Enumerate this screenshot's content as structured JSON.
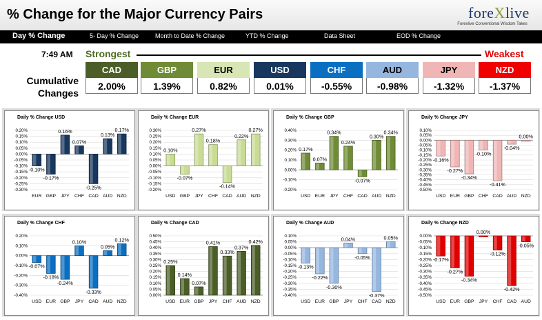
{
  "title": "% Change for the Major Currency Pairs",
  "logo": {
    "brand_a": "fore",
    "brand_x": "X",
    "brand_b": "live",
    "tagline": "Forexlive Conventional Wisdom Takes"
  },
  "nav": [
    "Day % Change",
    "5- Day % Change",
    "Month to Date % Change",
    "YTD % Change",
    "Data Sheet",
    "EOD % Change"
  ],
  "time": "7:49 AM",
  "strongest": "Strongest",
  "weakest": "Weakest",
  "cumulative_label": "Cumulative Changes",
  "currencies": [
    {
      "name": "CAD",
      "value": "2.00%",
      "color": "#4b5e27"
    },
    {
      "name": "GBP",
      "value": "1.39%",
      "color": "#6f8b36"
    },
    {
      "name": "EUR",
      "value": "0.82%",
      "color": "#d8e5b5",
      "text": "#000000"
    },
    {
      "name": "USD",
      "value": "0.01%",
      "color": "#17375e"
    },
    {
      "name": "CHF",
      "value": "-0.55%",
      "color": "#0b6fc1"
    },
    {
      "name": "AUD",
      "value": "-0.98%",
      "color": "#95b6df",
      "text": "#000000"
    },
    {
      "name": "JPY",
      "value": "-1.32%",
      "color": "#f0b6b6",
      "text": "#000000"
    },
    {
      "name": "NZD",
      "value": "-1.37%",
      "color": "#f00000"
    }
  ],
  "chart_data": [
    {
      "type": "bar",
      "title": "Daily % Change USD",
      "categories": [
        "EUR",
        "GBP",
        "JPY",
        "CHF",
        "CAD",
        "AUD",
        "NZD"
      ],
      "values": [
        -0.1,
        -0.17,
        0.16,
        0.07,
        -0.25,
        0.13,
        0.17
      ],
      "labels": [
        "-0.10%",
        "-0.17%",
        "0.16%",
        "0.07%",
        "-0.25%",
        "0.13%",
        "0.17%"
      ],
      "ylim": [
        -0.3,
        0.2
      ],
      "ticks": [
        "0.20%",
        "0.15%",
        "0.10%",
        "0.05%",
        "0.00%",
        "-0.05%",
        "-0.10%",
        "-0.15%",
        "-0.20%",
        "-0.25%",
        "-0.30%"
      ],
      "color": "#17375e"
    },
    {
      "type": "bar",
      "title": "Daily % Change EUR",
      "categories": [
        "USD",
        "GBP",
        "JPY",
        "CHF",
        "CAD",
        "AUD",
        "NZD"
      ],
      "values": [
        0.1,
        -0.07,
        0.27,
        0.18,
        -0.14,
        0.22,
        0.27
      ],
      "labels": [
        "0.10%",
        "-0.07%",
        "0.27%",
        "0.18%",
        "-0.14%",
        "0.22%",
        "0.27%"
      ],
      "ylim": [
        -0.2,
        0.3
      ],
      "ticks": [
        "0.30%",
        "0.25%",
        "0.20%",
        "0.15%",
        "0.10%",
        "0.05%",
        "0.00%",
        "-0.05%",
        "-0.10%",
        "-0.15%",
        "-0.20%"
      ],
      "color": "#c9dc93"
    },
    {
      "type": "bar",
      "title": "Daily % Change GBP",
      "categories": [
        "USD",
        "EUR",
        "JPY",
        "CHF",
        "CAD",
        "AUD",
        "NZD"
      ],
      "values": [
        0.17,
        0.07,
        0.34,
        0.24,
        -0.07,
        0.3,
        0.34
      ],
      "labels": [
        "0.17%",
        "0.07%",
        "0.34%",
        "0.24%",
        "-0.07%",
        "0.30%",
        "0.34%"
      ],
      "ylim": [
        -0.2,
        0.4
      ],
      "ticks": [
        "0.40%",
        "0.30%",
        "0.20%",
        "0.10%",
        "0.00%",
        "-0.10%",
        "-0.20%"
      ],
      "color": "#6f8b36"
    },
    {
      "type": "bar",
      "title": "Daily % Change JPY",
      "categories": [
        "USD",
        "EUR",
        "GBP",
        "CHF",
        "CAD",
        "AUD",
        "NZD"
      ],
      "values": [
        -0.16,
        -0.27,
        -0.34,
        -0.1,
        -0.41,
        -0.04,
        0.0
      ],
      "labels": [
        "-0.16%",
        "-0.27%",
        "-0.34%",
        "-0.10%",
        "-0.41%",
        "-0.04%",
        "0.00%"
      ],
      "ylim": [
        -0.5,
        0.1
      ],
      "ticks": [
        "0.10%",
        "0.05%",
        "0.00%",
        "-0.05%",
        "-0.10%",
        "-0.15%",
        "-0.20%",
        "-0.25%",
        "-0.30%",
        "-0.35%",
        "-0.40%",
        "-0.45%",
        "-0.50%"
      ],
      "color": "#f0b6b6"
    },
    {
      "type": "bar",
      "title": "Daily % Change CHF",
      "categories": [
        "USD",
        "EUR",
        "GBP",
        "JPY",
        "CAD",
        "AUD",
        "NZD"
      ],
      "values": [
        -0.07,
        -0.18,
        -0.24,
        0.1,
        -0.33,
        0.05,
        0.12
      ],
      "labels": [
        "-0.07%",
        "-0.18%",
        "-0.24%",
        "0.10%",
        "-0.33%",
        "0.05%",
        "0.12%"
      ],
      "ylim": [
        -0.4,
        0.2
      ],
      "ticks": [
        "0.20%",
        "0.10%",
        "0.00%",
        "-0.10%",
        "-0.20%",
        "-0.30%",
        "-0.40%"
      ],
      "color": "#0b6fc1"
    },
    {
      "type": "bar",
      "title": "Daily % Change CAD",
      "categories": [
        "USD",
        "EUR",
        "GBP",
        "JPY",
        "CHF",
        "AUD",
        "NZD"
      ],
      "values": [
        0.25,
        0.14,
        0.07,
        0.41,
        0.33,
        0.37,
        0.42
      ],
      "labels": [
        "0.25%",
        "0.14%",
        "0.07%",
        "0.41%",
        "0.33%",
        "0.37%",
        "0.42%"
      ],
      "ylim": [
        0.0,
        0.5
      ],
      "ticks": [
        "0.50%",
        "0.45%",
        "0.40%",
        "0.35%",
        "0.30%",
        "0.25%",
        "0.20%",
        "0.15%",
        "0.10%",
        "0.05%",
        "0.00%"
      ],
      "color": "#4b5e27"
    },
    {
      "type": "bar",
      "title": "Daily % Change AUD",
      "categories": [
        "USD",
        "EUR",
        "GBP",
        "JPY",
        "CHF",
        "CAD",
        "NZD"
      ],
      "values": [
        -0.13,
        -0.22,
        -0.3,
        0.04,
        -0.05,
        -0.37,
        0.05
      ],
      "labels": [
        "-0.13%",
        "-0.22%",
        "-0.30%",
        "0.04%",
        "-0.05%",
        "-0.37%",
        "0.05%"
      ],
      "ylim": [
        -0.4,
        0.1
      ],
      "ticks": [
        "0.10%",
        "0.05%",
        "0.00%",
        "-0.05%",
        "-0.10%",
        "-0.15%",
        "-0.20%",
        "-0.25%",
        "-0.30%",
        "-0.35%",
        "-0.40%"
      ],
      "color": "#95b6df"
    },
    {
      "type": "bar",
      "title": "Daily % Change NZD",
      "categories": [
        "USD",
        "EUR",
        "GBP",
        "JPY",
        "CHF",
        "CAD",
        "AUD"
      ],
      "values": [
        -0.17,
        -0.27,
        -0.34,
        0.0,
        -0.12,
        -0.42,
        -0.05
      ],
      "labels": [
        "-0.17%",
        "-0.27%",
        "-0.34%",
        "0.00%",
        "-0.12%",
        "-0.42%",
        "-0.05%"
      ],
      "ylim": [
        -0.5,
        0.0
      ],
      "ticks": [
        "0.00%",
        "-0.05%",
        "-0.10%",
        "-0.15%",
        "-0.20%",
        "-0.25%",
        "-0.30%",
        "-0.35%",
        "-0.40%",
        "-0.45%",
        "-0.50%"
      ],
      "color": "#e00000"
    }
  ]
}
